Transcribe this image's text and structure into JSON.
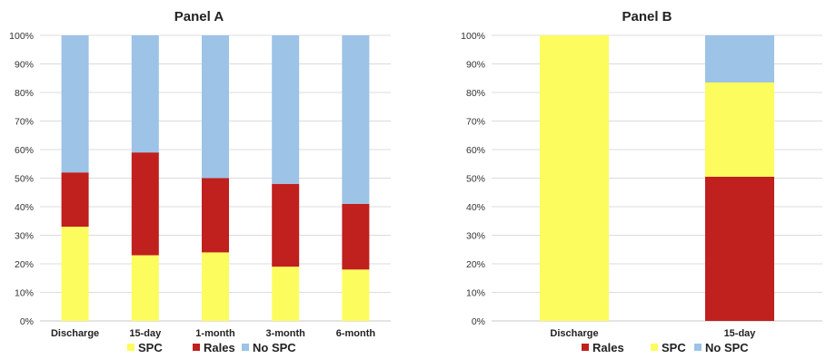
{
  "colors": {
    "SPC": "#fdfc5e",
    "Rales": "#c0201e",
    "No SPC": "#9dc3e6"
  },
  "chart_data": [
    {
      "type": "bar",
      "stacked": true,
      "title": "Panel A",
      "categories": [
        "Discharge",
        "15-day",
        "1-month",
        "3-month",
        "6-month"
      ],
      "series": [
        {
          "name": "SPC",
          "values": [
            33,
            23,
            24,
            19,
            18
          ]
        },
        {
          "name": "Rales",
          "values": [
            19,
            36,
            26,
            29,
            23
          ]
        },
        {
          "name": "No SPC",
          "values": [
            48,
            41,
            50,
            52,
            59
          ]
        }
      ],
      "ylim": [
        0,
        100
      ],
      "yticks": [
        "0%",
        "10%",
        "20%",
        "30%",
        "40%",
        "50%",
        "60%",
        "70%",
        "80%",
        "90%",
        "100%"
      ],
      "grid": true,
      "legend": [
        "SPC",
        "Rales",
        "No SPC"
      ],
      "legend_position": "bottom"
    },
    {
      "type": "bar",
      "stacked": true,
      "title": "Panel B",
      "categories": [
        "Discharge",
        "15-day"
      ],
      "series": [
        {
          "name": "Rales",
          "values": [
            0,
            50.5
          ]
        },
        {
          "name": "SPC",
          "values": [
            100,
            33
          ]
        },
        {
          "name": "No SPC",
          "values": [
            0,
            16.5
          ]
        }
      ],
      "ylim": [
        0,
        100
      ],
      "yticks": [
        "0%",
        "10%",
        "20%",
        "30%",
        "40%",
        "50%",
        "60%",
        "70%",
        "80%",
        "90%",
        "100%"
      ],
      "grid": true,
      "legend": [
        "Rales",
        "SPC",
        "No SPC"
      ],
      "legend_position": "bottom"
    }
  ]
}
